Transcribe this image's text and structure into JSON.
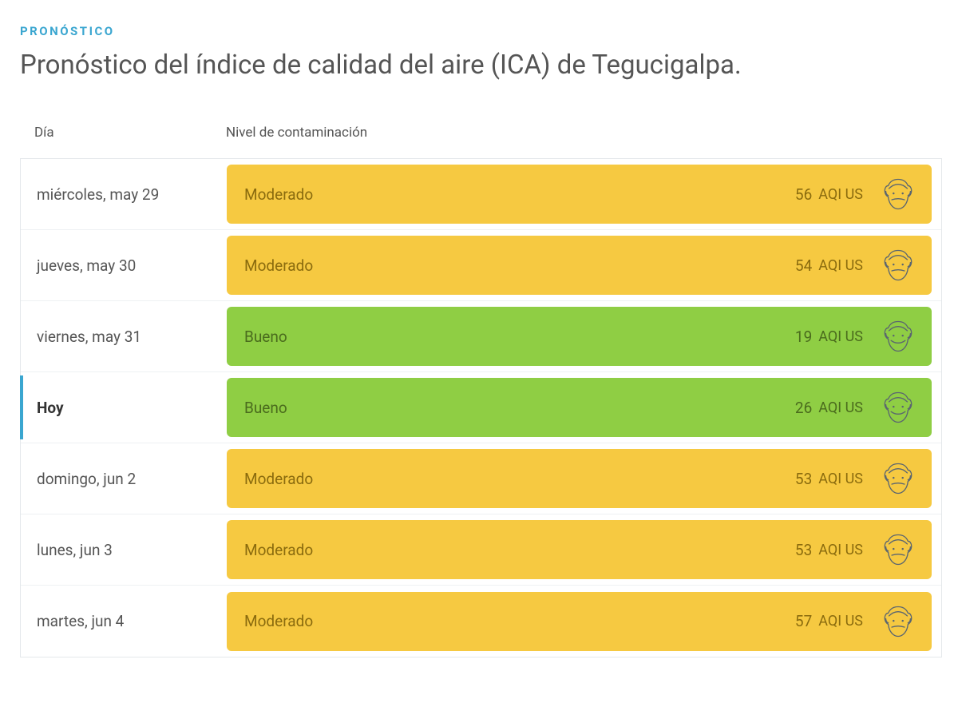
{
  "header": {
    "eyebrow": "PRONÓSTICO",
    "headline": "Pronóstico del índice de calidad del aire (ICA) de Tegucigalpa."
  },
  "columns": {
    "day": "Día",
    "level": "Nivel de contaminación"
  },
  "colors": {
    "eyebrow": "#3aa6d0",
    "headline": "#555555",
    "text": "#555555",
    "border": "#e4e8eb",
    "moderate_bg": "#f6c941",
    "moderate_text": "#8a6b0e",
    "good_bg": "#8fce44",
    "good_text": "#4a6b1d",
    "face_stroke": "#5a6570"
  },
  "aqi_unit": "AQI US",
  "forecast": [
    {
      "day": "miércoles, may 29",
      "level": "Moderado",
      "aqi": 56,
      "status": "moderate",
      "today": false
    },
    {
      "day": "jueves, may 30",
      "level": "Moderado",
      "aqi": 54,
      "status": "moderate",
      "today": false
    },
    {
      "day": "viernes, may 31",
      "level": "Bueno",
      "aqi": 19,
      "status": "good",
      "today": false
    },
    {
      "day": "Hoy",
      "level": "Bueno",
      "aqi": 26,
      "status": "good",
      "today": true
    },
    {
      "day": "domingo, jun 2",
      "level": "Moderado",
      "aqi": 53,
      "status": "moderate",
      "today": false
    },
    {
      "day": "lunes, jun 3",
      "level": "Moderado",
      "aqi": 53,
      "status": "moderate",
      "today": false
    },
    {
      "day": "martes, jun 4",
      "level": "Moderado",
      "aqi": 57,
      "status": "moderate",
      "today": false
    }
  ]
}
